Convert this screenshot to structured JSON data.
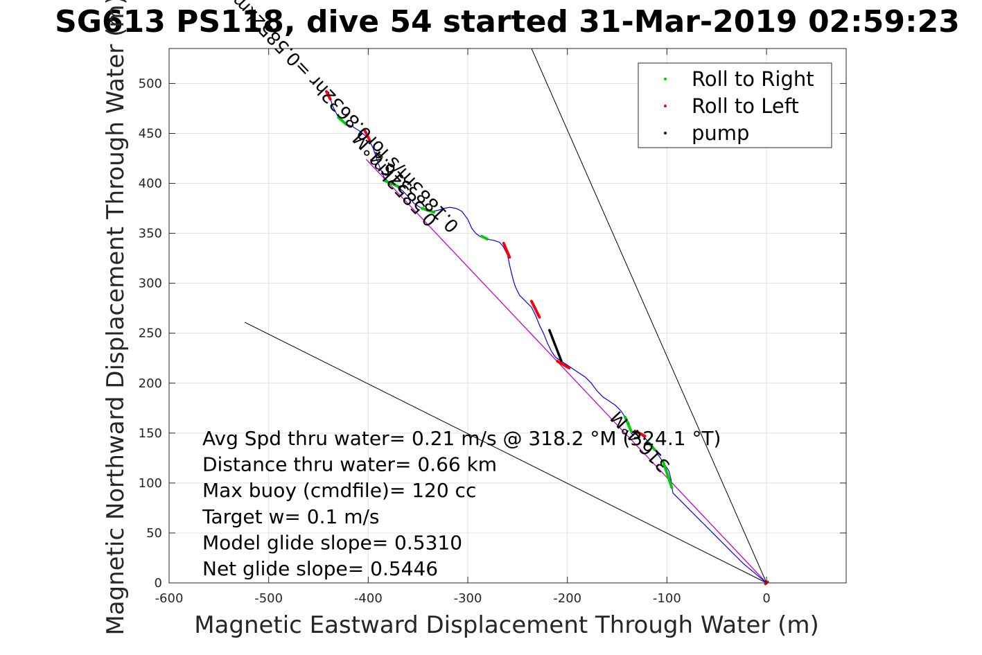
{
  "chart_data": {
    "type": "line",
    "title": "SG613 PS118, dive 54 started 31-Mar-2019 02:59:23",
    "xlabel": "Magnetic Eastward Displacement Through Water (m)",
    "ylabel": "Magnetic Northward Displacement Through Water (m)",
    "xlim": [
      -600,
      80
    ],
    "ylim": [
      0,
      535
    ],
    "xticks": [
      -600,
      -500,
      -400,
      -300,
      -200,
      -100,
      0
    ],
    "yticks": [
      0,
      50,
      100,
      150,
      200,
      250,
      300,
      350,
      400,
      450,
      500
    ],
    "grid": true,
    "legend": {
      "placement": "top-right",
      "entries": [
        {
          "label": "Roll to Right",
          "color": "#00cc00"
        },
        {
          "label": "Roll to Left",
          "color": "#ff0000"
        },
        {
          "label": "pump",
          "color": "#000000"
        }
      ]
    },
    "series": [
      {
        "role": "track",
        "color": "#0000ff",
        "x": [
          -440,
          -436,
          -430,
          -424,
          -416,
          -408,
          -400,
          -395,
          -390,
          -384,
          -378,
          -372,
          -366,
          -360,
          -354,
          -348,
          -342,
          -336,
          -330,
          -324,
          -318,
          -312,
          -306,
          -300,
          -296,
          -292,
          -288,
          -284,
          -280,
          -274,
          -268,
          -264,
          -260,
          -258,
          -256,
          -254,
          -252,
          -248,
          -244,
          -240,
          -236,
          -232,
          -228,
          -224,
          -220,
          -216,
          -212,
          -206,
          -200,
          -194,
          -188,
          -182,
          -176,
          -170,
          -164,
          -158,
          -152,
          -146,
          -142,
          -138,
          -136,
          -134,
          -130,
          -126,
          -122,
          -118,
          -114,
          -110,
          -106,
          -102,
          -98,
          -96,
          -95,
          -94,
          -90,
          -84,
          -78,
          -72,
          -66,
          -60,
          -54,
          -48,
          -42,
          -36,
          -30,
          -24,
          -18,
          -12,
          -6,
          0
        ],
        "y": [
          492,
          478,
          466,
          460,
          457,
          452,
          445,
          435,
          420,
          406,
          400,
          397,
          393,
          387,
          380,
          376,
          373,
          372,
          373,
          375,
          376,
          375,
          372,
          364,
          355,
          350,
          347,
          345,
          344,
          343,
          341,
          336,
          328,
          318,
          310,
          302,
          296,
          288,
          284,
          280,
          276,
          268,
          258,
          250,
          240,
          232,
          226,
          222,
          218,
          214,
          210,
          206,
          200,
          192,
          186,
          182,
          178,
          172,
          166,
          160,
          150,
          148,
          150,
          148,
          145,
          140,
          136,
          130,
          124,
          118,
          112,
          104,
          96,
          90,
          86,
          80,
          74,
          68,
          62,
          56,
          50,
          44,
          38,
          32,
          26,
          20,
          15,
          10,
          5,
          0
        ]
      },
      {
        "role": "roll-right",
        "color": "#00cc00",
        "segments": [
          {
            "x": [
              -430,
              -422
            ],
            "y": [
              466,
              459
            ]
          },
          {
            "x": [
              -384,
              -370
            ],
            "y": [
              403,
              397
            ]
          },
          {
            "x": [
              -346,
              -334
            ],
            "y": [
              375,
              371
            ]
          },
          {
            "x": [
              -286,
              -280
            ],
            "y": [
              347,
              344
            ]
          },
          {
            "x": [
              -142,
              -136
            ],
            "y": [
              166,
              152
            ]
          },
          {
            "x": [
              -118,
              -112
            ],
            "y": [
              140,
              133
            ]
          },
          {
            "x": [
              -104,
              -95
            ],
            "y": [
              122,
              95
            ]
          }
        ]
      },
      {
        "role": "roll-left",
        "color": "#ff0000",
        "segments": [
          {
            "x": [
              -442,
              -438
            ],
            "y": [
              492,
              484
            ]
          },
          {
            "x": [
              -404,
              -398
            ],
            "y": [
              454,
              442
            ]
          },
          {
            "x": [
              -264,
              -258
            ],
            "y": [
              340,
              326
            ]
          },
          {
            "x": [
              -236,
              -228
            ],
            "y": [
              282,
              266
            ]
          },
          {
            "x": [
              -210,
              -198
            ],
            "y": [
              222,
              215
            ]
          },
          {
            "x": [
              -132,
              -122
            ],
            "y": [
              152,
              147
            ]
          },
          {
            "x": [
              -1,
              1
            ],
            "y": [
              -1,
              1
            ]
          }
        ]
      },
      {
        "role": "pump",
        "color": "#000000",
        "segments": [
          {
            "x": [
              -218,
              -206
            ],
            "y": [
              253,
              222
            ]
          }
        ]
      },
      {
        "role": "net-displacement",
        "color": "#cc00cc",
        "x": [
          -402,
          0
        ],
        "y": [
          424,
          0
        ]
      },
      {
        "role": "reference-line-north",
        "color": "#000000",
        "x": [
          -236,
          0
        ],
        "y": [
          535,
          0
        ]
      },
      {
        "role": "reference-line-south",
        "color": "#000000",
        "x": [
          -524,
          0
        ],
        "y": [
          261,
          0
        ]
      }
    ],
    "track_labels": [
      {
        "text": "316.4°M",
        "x": -355,
        "y": 397,
        "angle_deg": 46.5
      },
      {
        "text": "316.4°M",
        "x": -96,
        "y": 118,
        "angle_deg": 46.5
      },
      {
        "text": "0.5852km",
        "x": -330,
        "y": 364,
        "angle_deg": 46.5
      },
      {
        "text": "0.1883m/s for0.8632hr =0.5852km",
        "x": -308,
        "y": 358,
        "angle_deg": 46.5
      }
    ],
    "annotations": [
      "Avg Spd thru water=  0.21 m/s @ 318.2 °M (324.1 °T)",
      "Distance thru water=  0.66 km",
      "Max buoy (cmdfile)= 120 cc",
      "Target w= 0.1 m/s",
      "Model glide slope= 0.5310",
      "Net glide slope= 0.5446"
    ]
  }
}
